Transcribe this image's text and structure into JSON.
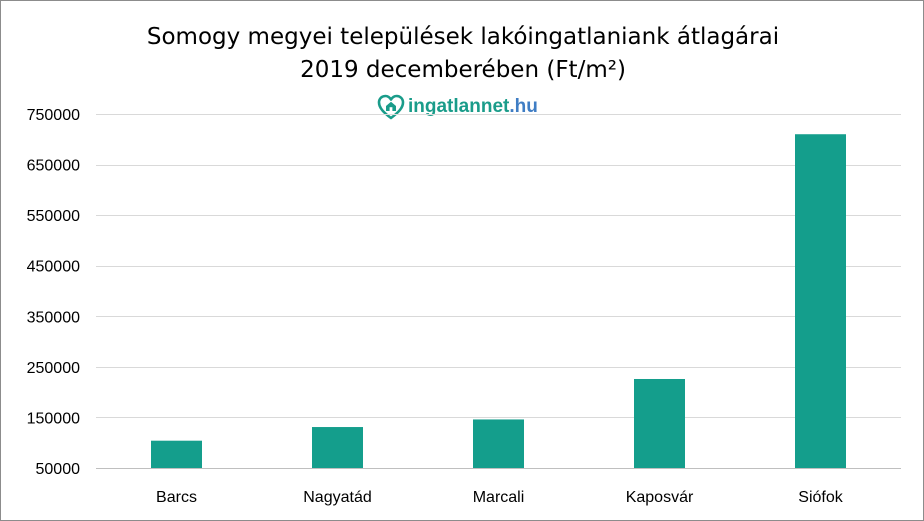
{
  "chart_data": {
    "type": "bar",
    "title_line1": "Somogy megyei települések lakóingatlaniank átlagárai",
    "title_line2": "2019 decemberében  (Ft/m²)",
    "xlabel": "",
    "ylabel": "",
    "categories": [
      "Barcs",
      "Nagyatád",
      "Marcali",
      "Kaposvár",
      "Siófok"
    ],
    "values": [
      104000,
      131000,
      146000,
      226000,
      710000
    ],
    "ylim": [
      50000,
      760000
    ],
    "yticks": [
      50000,
      150000,
      250000,
      350000,
      450000,
      550000,
      650000,
      750000
    ],
    "ytick_labels": [
      "50000",
      "150000",
      "250000",
      "350000",
      "450000",
      "550000",
      "650000",
      "750000"
    ],
    "grid": true,
    "legend": "none",
    "bar_color": "#149e8c"
  },
  "logo": {
    "name": "ingatlannet",
    "tld": ".hu",
    "icon": "house-heart-icon",
    "color_main": "#1a9c8a",
    "color_tld": "#3f7dc4"
  }
}
